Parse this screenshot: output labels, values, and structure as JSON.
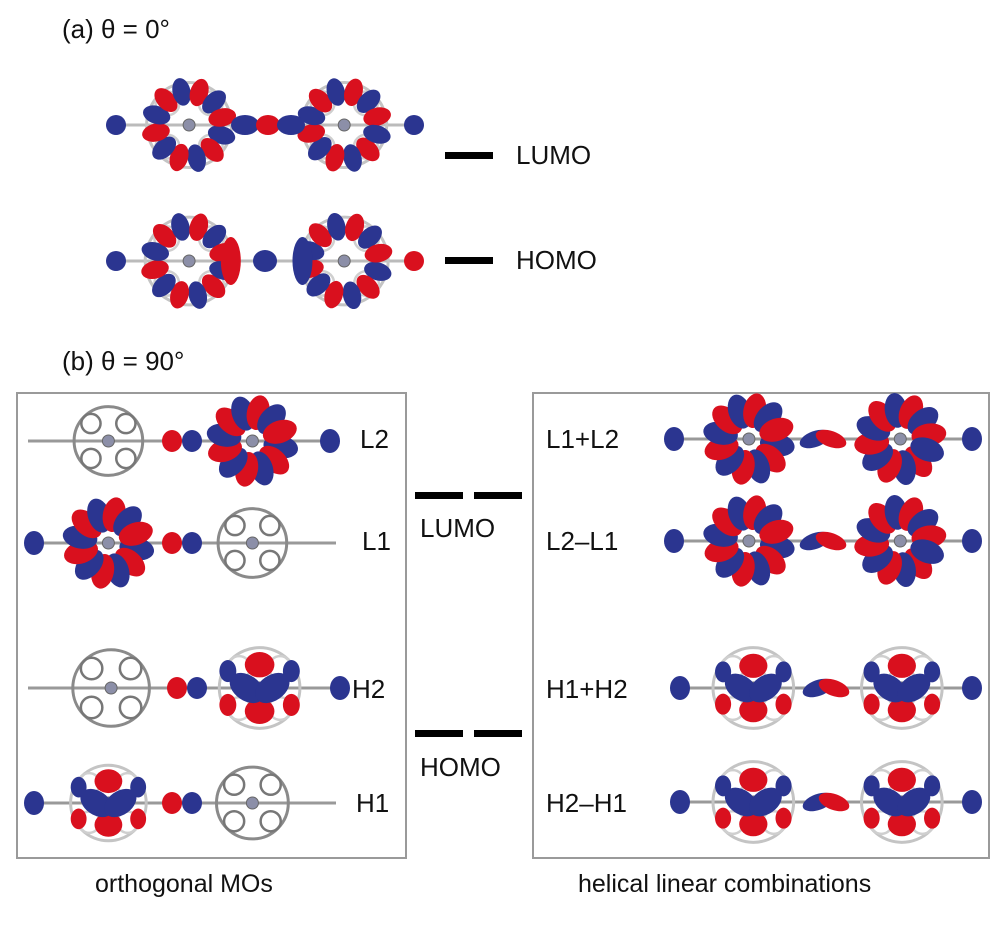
{
  "panel_a": {
    "title": "(a) θ = 0°",
    "levels": [
      {
        "label": "LUMO"
      },
      {
        "label": "HOMO"
      }
    ]
  },
  "panel_b": {
    "title": "(b) θ = 90°",
    "orthogonal": {
      "caption": "orthogonal MOs",
      "rows": [
        {
          "label": "L2",
          "lobes": "right"
        },
        {
          "label": "L1",
          "lobes": "left"
        },
        {
          "label": "H2",
          "lobes": "right"
        },
        {
          "label": "H1",
          "lobes": "left"
        }
      ]
    },
    "center_levels": [
      {
        "label": "LUMO"
      },
      {
        "label": "HOMO"
      }
    ],
    "helical": {
      "caption": "helical linear combinations",
      "rows": [
        {
          "label": "L1+L2"
        },
        {
          "label": "L2–L1"
        },
        {
          "label": "H1+H2"
        },
        {
          "label": "H2–H1"
        }
      ]
    }
  },
  "colors": {
    "positive_lobe": "#d9101e",
    "negative_lobe": "#2b3590",
    "frame": "#9a9a9a",
    "level_bar": "#000000",
    "skeleton": "#8a8a8a",
    "metal": "#8c8fa8"
  }
}
